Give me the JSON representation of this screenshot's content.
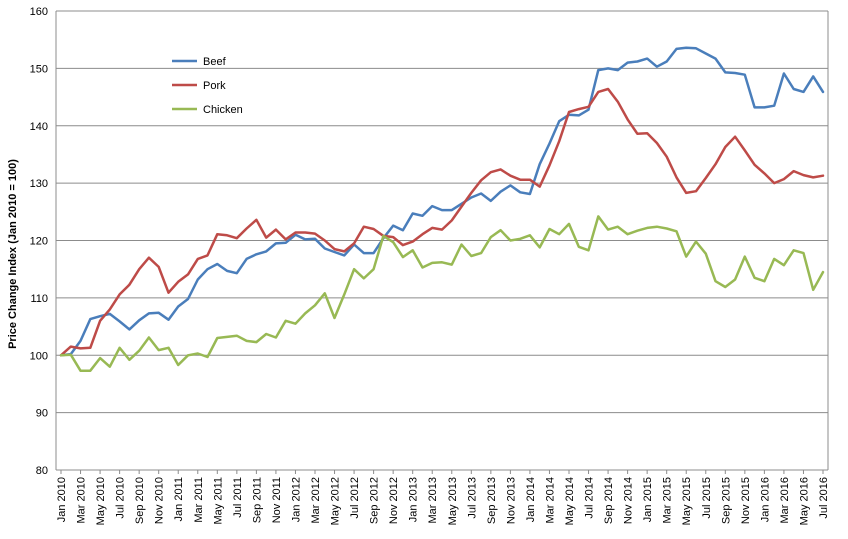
{
  "chart_data": {
    "type": "line",
    "title": "",
    "xlabel": "",
    "ylabel": "Price Change Index (Jan 2010 = 100)",
    "ylim": [
      80,
      160
    ],
    "yticks": [
      80,
      90,
      100,
      110,
      120,
      130,
      140,
      150,
      160
    ],
    "grid": true,
    "legend_position": "top-left",
    "x": [
      "Jan 2010",
      "Feb 2010",
      "Mar 2010",
      "Apr 2010",
      "May 2010",
      "Jun 2010",
      "Jul 2010",
      "Aug 2010",
      "Sep 2010",
      "Oct 2010",
      "Nov 2010",
      "Dec 2010",
      "Jan 2011",
      "Feb 2011",
      "Mar 2011",
      "Apr 2011",
      "May 2011",
      "Jun 2011",
      "Jul 2011",
      "Aug 2011",
      "Sep 2011",
      "Oct 2011",
      "Nov 2011",
      "Dec 2011",
      "Jan 2012",
      "Feb 2012",
      "Mar 2012",
      "Apr 2012",
      "May 2012",
      "Jun 2012",
      "Jul 2012",
      "Aug 2012",
      "Sep 2012",
      "Oct 2012",
      "Nov 2012",
      "Dec 2012",
      "Jan 2013",
      "Feb 2013",
      "Mar 2013",
      "Apr 2013",
      "May 2013",
      "Jun 2013",
      "Jul 2013",
      "Aug 2013",
      "Sep 2013",
      "Oct 2013",
      "Nov 2013",
      "Dec 2013",
      "Jan 2014",
      "Feb 2014",
      "Mar 2014",
      "Apr 2014",
      "May 2014",
      "Jun 2014",
      "Jul 2014",
      "Aug 2014",
      "Sep 2014",
      "Oct 2014",
      "Nov 2014",
      "Dec 2014",
      "Jan 2015",
      "Feb 2015",
      "Mar 2015",
      "Apr 2015",
      "May 2015",
      "Jun 2015",
      "Jul 2015",
      "Aug 2015",
      "Sep 2015",
      "Oct 2015",
      "Nov 2015",
      "Dec 2015",
      "Jan 2016",
      "Feb 2016",
      "Mar 2016",
      "Apr 2016",
      "May 2016",
      "Jun 2016",
      "Jul 2016"
    ],
    "tick_labels": [
      "Jan 2010",
      "Mar 2010",
      "May 2010",
      "Jul 2010",
      "Sep 2010",
      "Nov 2010",
      "Jan 2011",
      "Mar 2011",
      "May 2011",
      "Jul 2011",
      "Sep 2011",
      "Nov 2011",
      "Jan 2012",
      "Mar 2012",
      "May 2012",
      "Jul 2012",
      "Sep 2012",
      "Nov 2012",
      "Jan 2013",
      "Mar 2013",
      "May 2013",
      "Jul 2013",
      "Sep 2013",
      "Nov 2013",
      "Jan 2014",
      "Mar 2014",
      "May 2014",
      "Jul 2014",
      "Sep 2014",
      "Nov 2014",
      "Jan 2015",
      "Mar 2015",
      "May 2015",
      "Jul 2015",
      "Sep 2015",
      "Nov 2015",
      "Jan 2016",
      "Mar 2016",
      "May 2016",
      "Jul 2016"
    ],
    "series": [
      {
        "name": "Beef",
        "color": "#4a7ebb",
        "values": [
          100,
          100.2,
          102.5,
          106.3,
          106.8,
          107.2,
          105.9,
          104.5,
          106.1,
          107.3,
          107.4,
          106.2,
          108.5,
          109.8,
          113.2,
          115,
          115.9,
          114.7,
          114.3,
          116.8,
          117.6,
          118.1,
          119.5,
          119.6,
          121,
          120.2,
          120.3,
          118.6,
          118,
          117.4,
          119.3,
          117.8,
          117.8,
          120.4,
          122.6,
          121.8,
          124.7,
          124.3,
          126,
          125.3,
          125.3,
          126.4,
          127.5,
          128.2,
          126.9,
          128.5,
          129.6,
          128.4,
          128.1,
          133.3,
          136.9,
          140.8,
          141.9,
          141.8,
          142.8,
          149.7,
          150,
          149.7,
          151,
          151.2,
          151.7,
          150.3,
          151.2,
          153.4,
          153.6,
          153.5,
          152.6,
          151.7,
          149.3,
          149.2,
          148.9,
          143.2,
          143.2,
          143.5,
          149.1,
          146.4,
          145.9,
          148.6,
          145.9
        ]
      },
      {
        "name": "Pork",
        "color": "#be4b48",
        "values": [
          100,
          101.5,
          101.2,
          101.3,
          106,
          108,
          110.6,
          112.3,
          115,
          117,
          115.4,
          110.9,
          112.8,
          114.1,
          116.8,
          117.4,
          121.1,
          120.9,
          120.4,
          122.1,
          123.6,
          120.5,
          121.9,
          120.2,
          121.4,
          121.4,
          121.2,
          120,
          118.5,
          118.1,
          119.5,
          122.4,
          122,
          120.8,
          120.6,
          119.2,
          119.8,
          121.1,
          122.2,
          121.9,
          123.5,
          125.9,
          128.3,
          130.5,
          131.9,
          132.4,
          131.3,
          130.6,
          130.6,
          129.4,
          133.1,
          137.3,
          142.4,
          142.9,
          143.3,
          145.9,
          146.4,
          144.2,
          141.1,
          138.6,
          138.7,
          137,
          134.6,
          131,
          128.3,
          128.6,
          130.9,
          133.3,
          136.3,
          138.1,
          135.7,
          133.2,
          131.7,
          130,
          130.7,
          132.1,
          131.4,
          131,
          131.3
        ]
      },
      {
        "name": "Chicken",
        "color": "#98b954",
        "values": [
          100,
          100.1,
          97.3,
          97.3,
          99.5,
          98,
          101.3,
          99.2,
          100.8,
          103.1,
          100.9,
          101.3,
          98.3,
          100,
          100.3,
          99.7,
          103,
          103.2,
          103.4,
          102.5,
          102.3,
          103.7,
          103.1,
          106,
          105.5,
          107.3,
          108.7,
          110.8,
          106.5,
          110.6,
          115,
          113.4,
          115,
          120.8,
          119.7,
          117.1,
          118.3,
          115.3,
          116.1,
          116.2,
          115.8,
          119.3,
          117.3,
          117.8,
          120.6,
          121.8,
          120,
          120.3,
          120.9,
          118.8,
          122,
          121.1,
          122.9,
          118.9,
          118.3,
          124.2,
          121.9,
          122.4,
          121.1,
          121.7,
          122.2,
          122.4,
          122.1,
          121.6,
          117.2,
          119.8,
          117.7,
          112.9,
          111.9,
          113.2,
          117.2,
          113.5,
          112.9,
          116.8,
          115.7,
          118.3,
          117.8,
          111.4,
          114.5
        ]
      }
    ]
  }
}
